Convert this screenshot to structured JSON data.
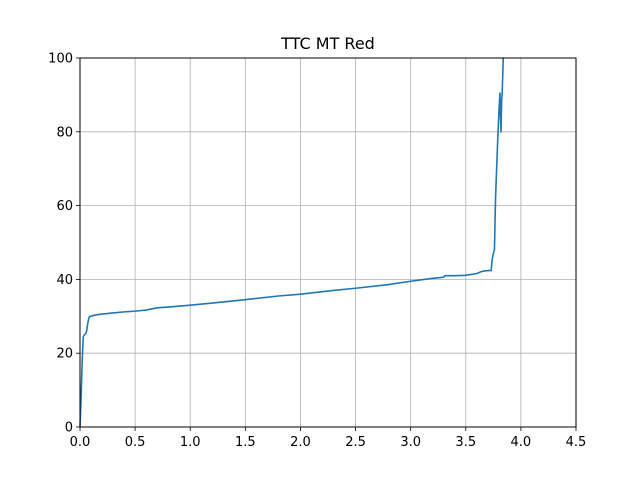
{
  "chart_data": {
    "type": "line",
    "title": "TTC MT Red",
    "xlabel": "",
    "ylabel": "",
    "xlim": [
      0,
      4.5
    ],
    "ylim": [
      0,
      100
    ],
    "xticks": [
      0.0,
      0.5,
      1.0,
      1.5,
      2.0,
      2.5,
      3.0,
      3.5,
      4.0,
      4.5
    ],
    "xtick_labels": [
      "0.0",
      "0.5",
      "1.0",
      "1.5",
      "2.0",
      "2.5",
      "3.0",
      "3.5",
      "4.0",
      "4.5"
    ],
    "yticks": [
      0,
      20,
      40,
      60,
      80,
      100
    ],
    "ytick_labels": [
      "0",
      "20",
      "40",
      "60",
      "80",
      "100"
    ],
    "grid": true,
    "series": [
      {
        "color": "#1f77b4",
        "x": [
          0.0,
          0.01,
          0.02,
          0.03,
          0.04,
          0.05,
          0.06,
          0.07,
          0.08,
          0.09,
          0.1,
          0.12,
          0.15,
          0.2,
          0.3,
          0.4,
          0.5,
          0.6,
          0.65,
          0.7,
          0.8,
          1.0,
          1.2,
          1.5,
          1.8,
          2.0,
          2.3,
          2.5,
          2.8,
          3.0,
          3.2,
          3.3,
          3.31,
          3.4,
          3.5,
          3.6,
          3.65,
          3.7,
          3.73,
          3.74,
          3.75,
          3.76,
          3.765,
          3.77,
          3.78,
          3.79,
          3.8,
          3.81,
          3.815,
          3.82,
          3.825,
          3.83,
          3.835,
          3.84
        ],
        "y": [
          0.0,
          8.0,
          18.0,
          24.5,
          25.0,
          25.2,
          26.0,
          28.0,
          29.5,
          30.0,
          30.0,
          30.2,
          30.4,
          30.6,
          30.9,
          31.2,
          31.4,
          31.7,
          32.0,
          32.3,
          32.5,
          33.0,
          33.6,
          34.5,
          35.5,
          36.0,
          37.0,
          37.6,
          38.6,
          39.5,
          40.3,
          40.6,
          41.0,
          41.0,
          41.1,
          41.6,
          42.2,
          42.4,
          42.4,
          45.5,
          47.0,
          48.0,
          55.0,
          62.0,
          70.0,
          78.0,
          85.0,
          90.5,
          84.0,
          80.0,
          88.0,
          90.5,
          95.0,
          100.0
        ]
      }
    ]
  }
}
